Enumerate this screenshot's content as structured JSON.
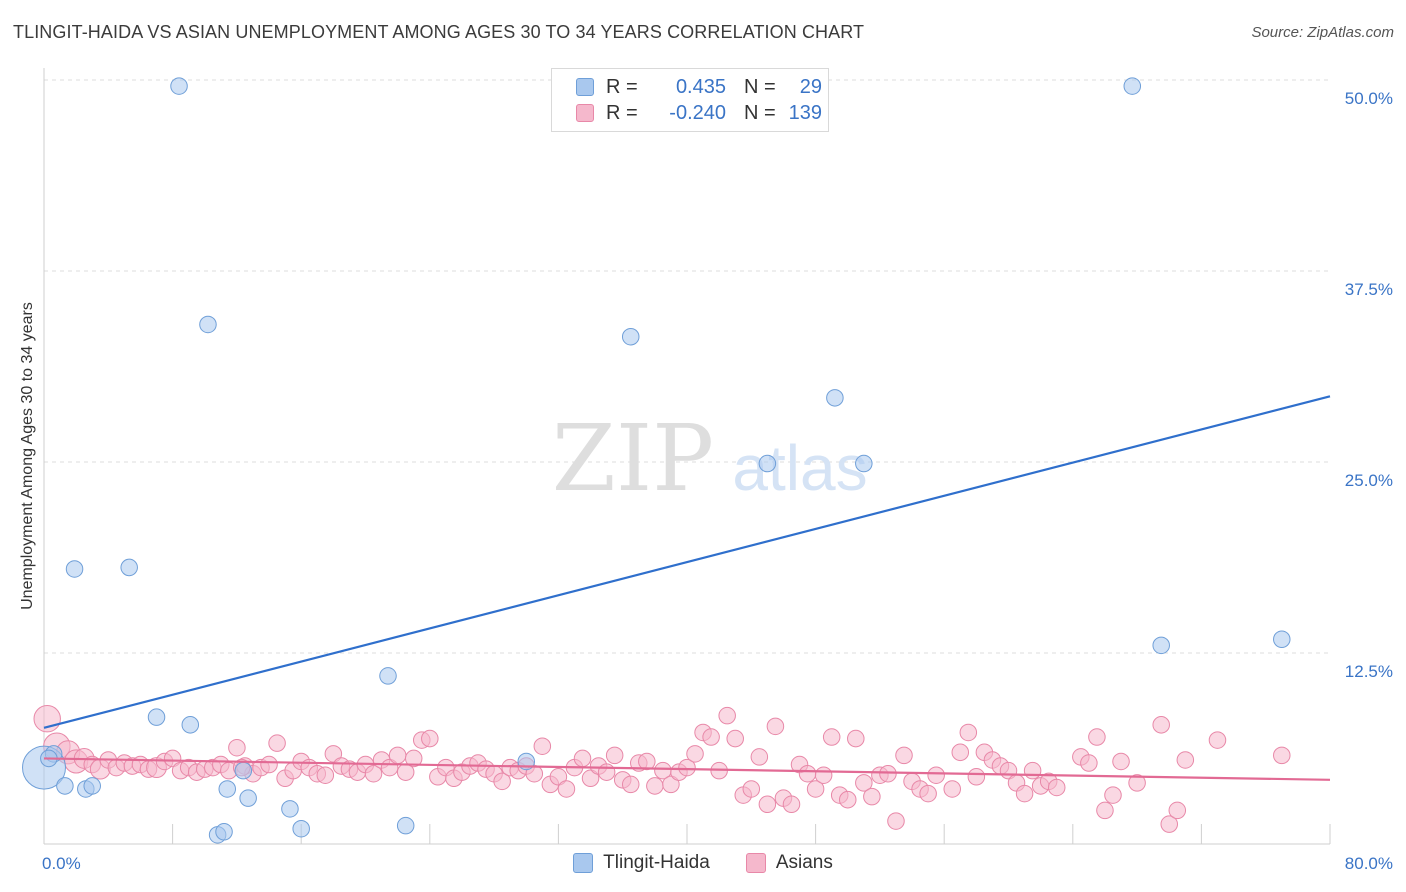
{
  "title": "TLINGIT-HAIDA VS ASIAN UNEMPLOYMENT AMONG AGES 30 TO 34 YEARS CORRELATION CHART",
  "source": "Source: ZipAtlas.com",
  "watermark": {
    "zip": "ZIP",
    "atlas": "atlas"
  },
  "legend": {
    "rows": [
      {
        "r_label": "R =",
        "r_value": "0.435",
        "n_label": "N =",
        "n_value": "29"
      },
      {
        "r_label": "R =",
        "r_value": "-0.240",
        "n_label": "N =",
        "n_value": "139"
      }
    ]
  },
  "chart_data": {
    "type": "scatter",
    "title": "TLINGIT-HAIDA VS ASIAN UNEMPLOYMENT AMONG AGES 30 TO 34 YEARS CORRELATION CHART",
    "xlabel": "",
    "ylabel": "Unemployment Among Ages 30 to 34 years",
    "xlim": [
      0,
      80
    ],
    "ylim": [
      0,
      50
    ],
    "x_tick_labels": [
      "0.0%",
      "80.0%"
    ],
    "y_ticks": [
      12.5,
      25.0,
      37.5,
      50.0
    ],
    "y_tick_labels": [
      "12.5%",
      "25.0%",
      "37.5%",
      "50.0%"
    ],
    "grid": true,
    "legend_position": "top-center",
    "colors": {
      "tlingit_fill": "#a9c8ee",
      "tlingit_stroke": "#6f9fd8",
      "tlingit_line": "#2f6fcc",
      "asian_fill": "#f5b8cc",
      "asian_stroke": "#e888a8",
      "asian_line": "#e26a94",
      "axis_label": "#3a74c6"
    },
    "series": [
      {
        "name": "Tlingit-Haida",
        "trend": {
          "x": [
            0,
            80
          ],
          "y": [
            7.6,
            29.3
          ]
        },
        "points": [
          [
            0.0,
            5.0,
            26
          ],
          [
            0.6,
            5.9,
            10
          ],
          [
            1.3,
            3.8,
            10
          ],
          [
            1.9,
            18.0,
            10
          ],
          [
            2.6,
            3.6,
            10
          ],
          [
            3.0,
            3.8,
            10
          ],
          [
            5.3,
            18.1,
            10
          ],
          [
            7.0,
            8.3,
            10
          ],
          [
            8.4,
            49.6,
            10
          ],
          [
            9.1,
            7.8,
            10
          ],
          [
            10.2,
            34.0,
            10
          ],
          [
            10.8,
            0.6,
            10
          ],
          [
            11.2,
            0.8,
            10
          ],
          [
            11.4,
            3.6,
            10
          ],
          [
            12.4,
            4.8,
            10
          ],
          [
            12.7,
            3.0,
            10
          ],
          [
            15.3,
            2.3,
            10
          ],
          [
            16.0,
            1.0,
            10
          ],
          [
            21.4,
            11.0,
            10
          ],
          [
            22.5,
            1.2,
            10
          ],
          [
            30.0,
            5.4,
            10
          ],
          [
            36.5,
            33.2,
            10
          ],
          [
            45.0,
            24.9,
            10
          ],
          [
            49.2,
            29.2,
            10
          ],
          [
            51.0,
            24.9,
            10
          ],
          [
            67.7,
            49.6,
            10
          ],
          [
            69.5,
            13.0,
            10
          ],
          [
            77.0,
            13.4,
            10
          ],
          [
            0.3,
            5.6,
            10
          ]
        ]
      },
      {
        "name": "Asians",
        "trend": {
          "x": [
            0,
            80
          ],
          "y": [
            5.6,
            4.2
          ]
        },
        "points": [
          [
            0.2,
            8.2,
            16
          ],
          [
            0.8,
            6.4,
            16
          ],
          [
            1.5,
            6.0,
            14
          ],
          [
            2.0,
            5.4,
            14
          ],
          [
            2.5,
            5.6,
            12
          ],
          [
            3.0,
            5.2,
            10
          ],
          [
            3.5,
            4.9,
            12
          ],
          [
            4.0,
            5.5,
            10
          ],
          [
            4.5,
            5.0,
            10
          ],
          [
            5.0,
            5.3,
            10
          ],
          [
            5.5,
            5.1,
            10
          ],
          [
            6.0,
            5.2,
            10
          ],
          [
            6.5,
            4.9,
            10
          ],
          [
            7.0,
            5.0,
            12
          ],
          [
            7.5,
            5.4,
            10
          ],
          [
            8.0,
            5.6,
            10
          ],
          [
            8.5,
            4.8,
            10
          ],
          [
            9.0,
            5.0,
            10
          ],
          [
            9.5,
            4.7,
            10
          ],
          [
            10.0,
            4.9,
            10
          ],
          [
            10.5,
            5.0,
            10
          ],
          [
            11.0,
            5.2,
            10
          ],
          [
            11.5,
            4.8,
            10
          ],
          [
            12.0,
            6.3,
            10
          ],
          [
            12.5,
            5.1,
            10
          ],
          [
            13.0,
            4.6,
            10
          ],
          [
            13.5,
            5.0,
            10
          ],
          [
            14.0,
            5.2,
            10
          ],
          [
            14.5,
            6.6,
            10
          ],
          [
            15.0,
            4.3,
            10
          ],
          [
            15.5,
            4.8,
            10
          ],
          [
            16.0,
            5.4,
            10
          ],
          [
            16.5,
            5.0,
            10
          ],
          [
            17.0,
            4.6,
            10
          ],
          [
            17.5,
            4.5,
            10
          ],
          [
            18.0,
            5.9,
            10
          ],
          [
            18.5,
            5.1,
            10
          ],
          [
            19.0,
            4.9,
            10
          ],
          [
            19.5,
            4.7,
            10
          ],
          [
            20.0,
            5.2,
            10
          ],
          [
            20.5,
            4.6,
            10
          ],
          [
            21.0,
            5.5,
            10
          ],
          [
            21.5,
            5.0,
            10
          ],
          [
            22.0,
            5.8,
            10
          ],
          [
            22.5,
            4.7,
            10
          ],
          [
            23.0,
            5.6,
            10
          ],
          [
            23.5,
            6.8,
            10
          ],
          [
            24.0,
            6.9,
            10
          ],
          [
            24.5,
            4.4,
            10
          ],
          [
            25.0,
            5.0,
            10
          ],
          [
            25.5,
            4.3,
            10
          ],
          [
            26.0,
            4.7,
            10
          ],
          [
            26.5,
            5.1,
            10
          ],
          [
            27.0,
            5.3,
            10
          ],
          [
            27.5,
            4.9,
            10
          ],
          [
            28.0,
            4.6,
            10
          ],
          [
            28.5,
            4.1,
            10
          ],
          [
            29.0,
            5.0,
            10
          ],
          [
            29.5,
            4.8,
            10
          ],
          [
            30.0,
            5.1,
            10
          ],
          [
            30.5,
            4.6,
            10
          ],
          [
            31.0,
            6.4,
            10
          ],
          [
            31.5,
            3.9,
            10
          ],
          [
            32.0,
            4.4,
            10
          ],
          [
            32.5,
            3.6,
            10
          ],
          [
            33.0,
            5.0,
            10
          ],
          [
            33.5,
            5.6,
            10
          ],
          [
            34.0,
            4.3,
            10
          ],
          [
            34.5,
            5.1,
            10
          ],
          [
            35.0,
            4.7,
            10
          ],
          [
            35.5,
            5.8,
            10
          ],
          [
            36.0,
            4.2,
            10
          ],
          [
            36.5,
            3.9,
            10
          ],
          [
            37.0,
            5.3,
            10
          ],
          [
            37.5,
            5.4,
            10
          ],
          [
            38.0,
            3.8,
            10
          ],
          [
            38.5,
            4.8,
            10
          ],
          [
            39.0,
            3.9,
            10
          ],
          [
            39.5,
            4.7,
            10
          ],
          [
            40.0,
            5.0,
            10
          ],
          [
            40.5,
            5.9,
            10
          ],
          [
            41.0,
            7.3,
            10
          ],
          [
            41.5,
            7.0,
            10
          ],
          [
            42.0,
            4.8,
            10
          ],
          [
            42.5,
            8.4,
            10
          ],
          [
            43.0,
            6.9,
            10
          ],
          [
            43.5,
            3.2,
            10
          ],
          [
            44.0,
            3.6,
            10
          ],
          [
            44.5,
            5.7,
            10
          ],
          [
            45.0,
            2.6,
            10
          ],
          [
            45.5,
            7.7,
            10
          ],
          [
            46.0,
            3.0,
            10
          ],
          [
            46.5,
            2.6,
            10
          ],
          [
            47.0,
            5.2,
            10
          ],
          [
            47.5,
            4.6,
            10
          ],
          [
            48.0,
            3.6,
            10
          ],
          [
            48.5,
            4.5,
            10
          ],
          [
            49.0,
            7.0,
            10
          ],
          [
            49.5,
            3.2,
            10
          ],
          [
            50.0,
            2.9,
            10
          ],
          [
            50.5,
            6.9,
            10
          ],
          [
            51.0,
            4.0,
            10
          ],
          [
            51.5,
            3.1,
            10
          ],
          [
            52.0,
            4.5,
            10
          ],
          [
            52.5,
            4.6,
            10
          ],
          [
            53.0,
            1.5,
            10
          ],
          [
            53.5,
            5.8,
            10
          ],
          [
            54.0,
            4.1,
            10
          ],
          [
            54.5,
            3.6,
            10
          ],
          [
            55.0,
            3.3,
            10
          ],
          [
            55.5,
            4.5,
            10
          ],
          [
            56.5,
            3.6,
            10
          ],
          [
            57.0,
            6.0,
            10
          ],
          [
            57.5,
            7.3,
            10
          ],
          [
            58.0,
            4.4,
            10
          ],
          [
            58.5,
            6.0,
            10
          ],
          [
            59.0,
            5.5,
            10
          ],
          [
            59.5,
            5.1,
            10
          ],
          [
            60.0,
            4.8,
            10
          ],
          [
            60.5,
            4.0,
            10
          ],
          [
            61.0,
            3.3,
            10
          ],
          [
            61.5,
            4.8,
            10
          ],
          [
            62.0,
            3.8,
            10
          ],
          [
            62.5,
            4.1,
            10
          ],
          [
            63.0,
            3.7,
            10
          ],
          [
            64.5,
            5.7,
            10
          ],
          [
            65.0,
            5.3,
            10
          ],
          [
            65.5,
            7.0,
            10
          ],
          [
            66.0,
            2.2,
            10
          ],
          [
            66.5,
            3.2,
            10
          ],
          [
            67.0,
            5.4,
            10
          ],
          [
            68.0,
            4.0,
            10
          ],
          [
            69.5,
            7.8,
            10
          ],
          [
            70.0,
            1.3,
            10
          ],
          [
            70.5,
            2.2,
            10
          ],
          [
            71.0,
            5.5,
            10
          ],
          [
            73.0,
            6.8,
            10
          ],
          [
            77.0,
            5.8,
            10
          ],
          [
            12.3,
            5.0,
            10
          ]
        ]
      }
    ]
  },
  "bottom_legend": [
    {
      "name": "Tlingit-Haida"
    },
    {
      "name": "Asians"
    }
  ]
}
